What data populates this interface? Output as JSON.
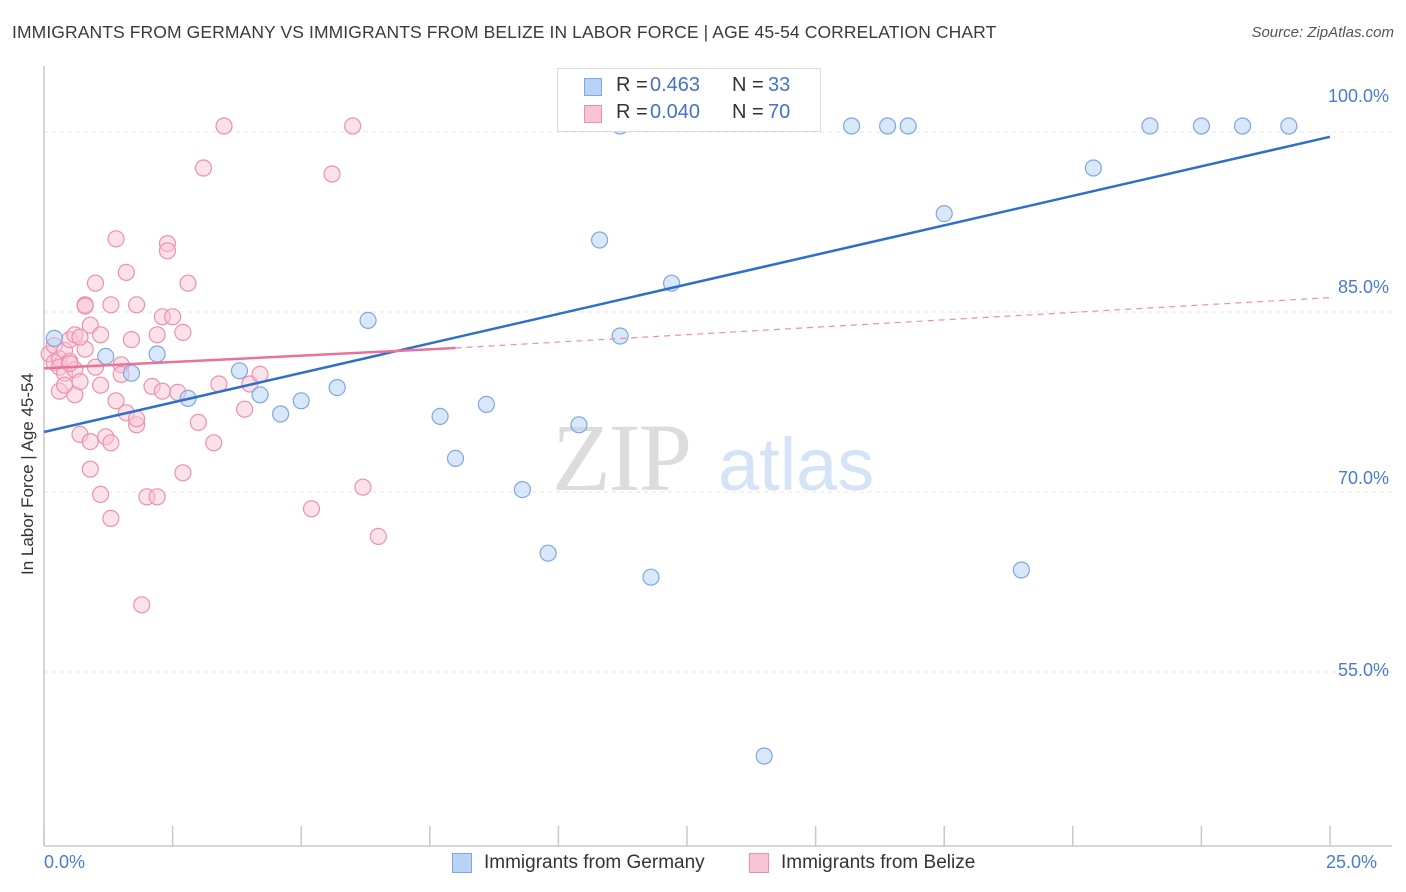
{
  "header": {
    "title": "IMMIGRANTS FROM GERMANY VS IMMIGRANTS FROM BELIZE IN LABOR FORCE | AGE 45-54 CORRELATION CHART",
    "source": "Source: ZipAtlas.com"
  },
  "legend": {
    "germany": {
      "r_label": "R =",
      "r_value": "0.463",
      "n_label": "N =",
      "n_value": "33"
    },
    "belize": {
      "r_label": "R =",
      "r_value": "0.040",
      "n_label": "N =",
      "n_value": "70"
    }
  },
  "bottom_legend": {
    "germany": "Immigrants from Germany",
    "belize": "Immigrants from Belize"
  },
  "axis_labels": {
    "y_axis_title": "In Labor Force | Age 45-54",
    "x_min": "0.0%",
    "x_max": "25.0%",
    "y_ticks": [
      "100.0%",
      "85.0%",
      "70.0%",
      "55.0%"
    ]
  },
  "watermark": {
    "zip": "ZIP",
    "atlas": "atlas"
  },
  "colors": {
    "germany_fill": "#b8d3f5",
    "germany_stroke": "#7fa7e0",
    "germany_line": "#2f6fcc",
    "belize_fill": "#f7c4d4",
    "belize_stroke": "#ee90ad",
    "belize_line": "#e8729a",
    "tick_text": "#4a7bd0",
    "grid": "#e6e6e6"
  },
  "chart_data": {
    "type": "scatter",
    "title": "IMMIGRANTS FROM GERMANY VS IMMIGRANTS FROM BELIZE IN LABOR FORCE | AGE 45-54 CORRELATION CHART",
    "xlabel": "",
    "ylabel": "In Labor Force | Age 45-54",
    "xlim": [
      0,
      25
    ],
    "ylim": [
      40.5,
      105.5
    ],
    "y_ticks": [
      55,
      70,
      85,
      100
    ],
    "grid": true,
    "series": [
      {
        "name": "Immigrants from Germany",
        "r": 0.463,
        "n": 33,
        "trend": {
          "x0": 0,
          "y0": 75.0,
          "x1": 25,
          "y1": 99.6
        },
        "points": [
          [
            0.2,
            82.8
          ],
          [
            1.2,
            81.3
          ],
          [
            1.7,
            79.9
          ],
          [
            2.2,
            81.5
          ],
          [
            2.8,
            77.8
          ],
          [
            3.8,
            80.1
          ],
          [
            4.2,
            78.1
          ],
          [
            4.6,
            76.5
          ],
          [
            5.7,
            78.7
          ],
          [
            6.3,
            84.3
          ],
          [
            5.0,
            77.6
          ],
          [
            7.7,
            76.3
          ],
          [
            8.0,
            72.8
          ],
          [
            8.6,
            77.3
          ],
          [
            9.3,
            70.2
          ],
          [
            9.8,
            64.9
          ],
          [
            10.4,
            75.6
          ],
          [
            10.8,
            91.0
          ],
          [
            11.2,
            83.0
          ],
          [
            11.8,
            62.9
          ],
          [
            12.2,
            87.4
          ],
          [
            14.0,
            48.0
          ],
          [
            17.5,
            93.2
          ],
          [
            19.0,
            63.5
          ],
          [
            20.4,
            97.0
          ],
          [
            21.5,
            100.5
          ],
          [
            22.5,
            100.5
          ],
          [
            23.3,
            100.5
          ],
          [
            24.2,
            100.5
          ],
          [
            11.2,
            100.5
          ],
          [
            15.7,
            100.5
          ],
          [
            16.4,
            100.5
          ],
          [
            16.8,
            100.5
          ]
        ]
      },
      {
        "name": "Immigrants from Belize",
        "r": 0.04,
        "n": 70,
        "trend": {
          "x0": 0,
          "y0": 80.3,
          "x1": 8,
          "y1": 82.0
        },
        "trend_extension": {
          "x0": 8,
          "y0": 82.0,
          "x1": 25,
          "y1": 86.2
        },
        "points": [
          [
            0.1,
            81.5
          ],
          [
            0.2,
            80.8
          ],
          [
            0.2,
            82.2
          ],
          [
            0.3,
            81.1
          ],
          [
            0.3,
            80.4
          ],
          [
            0.3,
            78.4
          ],
          [
            0.4,
            81.8
          ],
          [
            0.4,
            79.9
          ],
          [
            0.5,
            82.7
          ],
          [
            0.5,
            80.9
          ],
          [
            0.6,
            80.2
          ],
          [
            0.6,
            83.1
          ],
          [
            0.6,
            78.1
          ],
          [
            0.7,
            79.2
          ],
          [
            0.7,
            74.8
          ],
          [
            0.8,
            85.6
          ],
          [
            0.8,
            81.9
          ],
          [
            0.9,
            83.9
          ],
          [
            0.9,
            74.2
          ],
          [
            0.9,
            71.9
          ],
          [
            1.0,
            80.4
          ],
          [
            1.0,
            87.4
          ],
          [
            1.1,
            78.9
          ],
          [
            1.1,
            69.8
          ],
          [
            1.1,
            83.1
          ],
          [
            1.2,
            74.6
          ],
          [
            1.3,
            85.6
          ],
          [
            1.3,
            67.8
          ],
          [
            1.3,
            74.1
          ],
          [
            1.4,
            91.1
          ],
          [
            1.4,
            77.6
          ],
          [
            1.5,
            80.6
          ],
          [
            1.5,
            79.8
          ],
          [
            1.6,
            88.3
          ],
          [
            1.6,
            76.6
          ],
          [
            1.7,
            82.7
          ],
          [
            1.8,
            85.6
          ],
          [
            1.8,
            75.6
          ],
          [
            1.8,
            76.1
          ],
          [
            1.9,
            60.6
          ],
          [
            2.0,
            69.6
          ],
          [
            2.1,
            78.8
          ],
          [
            2.2,
            83.1
          ],
          [
            2.2,
            69.6
          ],
          [
            2.3,
            84.6
          ],
          [
            2.3,
            78.4
          ],
          [
            2.4,
            90.7
          ],
          [
            2.4,
            90.1
          ],
          [
            2.5,
            84.6
          ],
          [
            2.6,
            78.3
          ],
          [
            2.7,
            83.3
          ],
          [
            2.7,
            71.6
          ],
          [
            2.8,
            87.4
          ],
          [
            3.0,
            75.8
          ],
          [
            3.1,
            97.0
          ],
          [
            3.3,
            74.1
          ],
          [
            3.4,
            79.0
          ],
          [
            3.5,
            100.5
          ],
          [
            3.9,
            76.9
          ],
          [
            4.0,
            79.0
          ],
          [
            4.2,
            79.8
          ],
          [
            0.8,
            85.5
          ],
          [
            0.5,
            80.7
          ],
          [
            0.4,
            78.9
          ],
          [
            0.7,
            82.9
          ],
          [
            5.2,
            68.6
          ],
          [
            5.6,
            96.5
          ],
          [
            6.0,
            100.5
          ],
          [
            6.2,
            70.4
          ],
          [
            6.5,
            66.3
          ]
        ]
      }
    ]
  }
}
